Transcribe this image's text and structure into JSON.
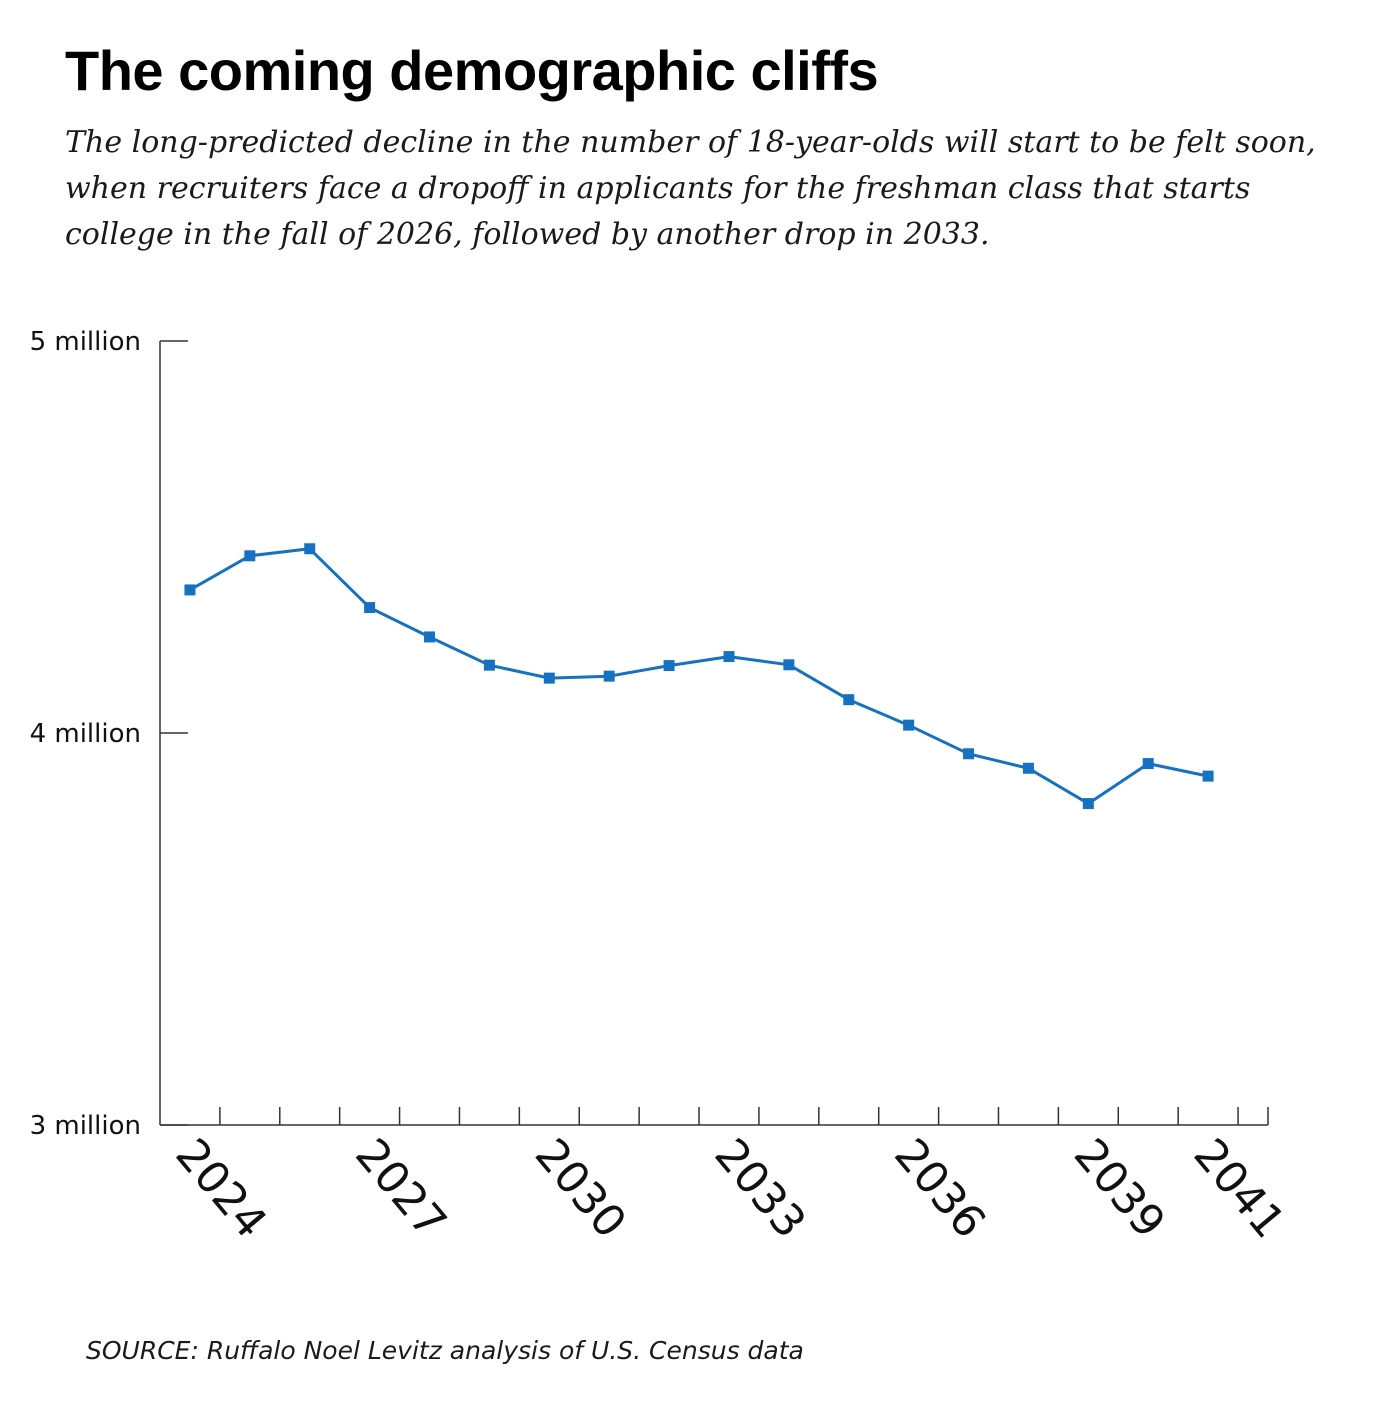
{
  "header": {
    "title": "The coming demographic cliffs",
    "subtitle": "The long-predicted decline in the number of 18-year-olds will start to be felt soon, when recruiters face a dropoff in applicants for the freshman class that starts college in the fall of 2026, followed by another drop in 2033."
  },
  "footer": {
    "source": "SOURCE: Ruffalo Noel Levitz analysis of U.S. Census data"
  },
  "chart_data": {
    "type": "line",
    "title": "The coming demographic cliffs",
    "xlabel": "",
    "ylabel": "",
    "x": [
      2023.5,
      2024.5,
      2025.5,
      2026.5,
      2027.5,
      2028.5,
      2029.5,
      2030.5,
      2031.5,
      2032.5,
      2033.5,
      2034.5,
      2035.5,
      2036.5,
      2037.5,
      2038.5,
      2039.5,
      2040.5
    ],
    "series": [
      {
        "name": "",
        "color": "#1672c0",
        "values": [
          4.365,
          4.452,
          4.47,
          4.32,
          4.245,
          4.173,
          4.14,
          4.145,
          4.172,
          4.195,
          4.174,
          4.085,
          4.02,
          3.947,
          3.91,
          3.82,
          3.922,
          3.89
        ]
      }
    ],
    "xlim": [
      2023,
      2041.5
    ],
    "ylim": [
      3,
      5
    ],
    "x_tick_values": [
      2024,
      2027,
      2030,
      2033,
      2036,
      2039,
      2041
    ],
    "x_tick_labels": [
      "2024",
      "2027",
      "2030",
      "2033",
      "2036",
      "2039",
      "2041"
    ],
    "x_minor_ticks": [
      2024,
      2025,
      2026,
      2027,
      2028,
      2029,
      2030,
      2031,
      2032,
      2033,
      2034,
      2035,
      2036,
      2037,
      2038,
      2039,
      2040,
      2041
    ],
    "y_tick_values": [
      3,
      4,
      5
    ],
    "y_tick_labels": [
      "3 million",
      "4 million",
      "5 million"
    ],
    "grid": false,
    "legend": "none",
    "axis_color": "#333333"
  }
}
